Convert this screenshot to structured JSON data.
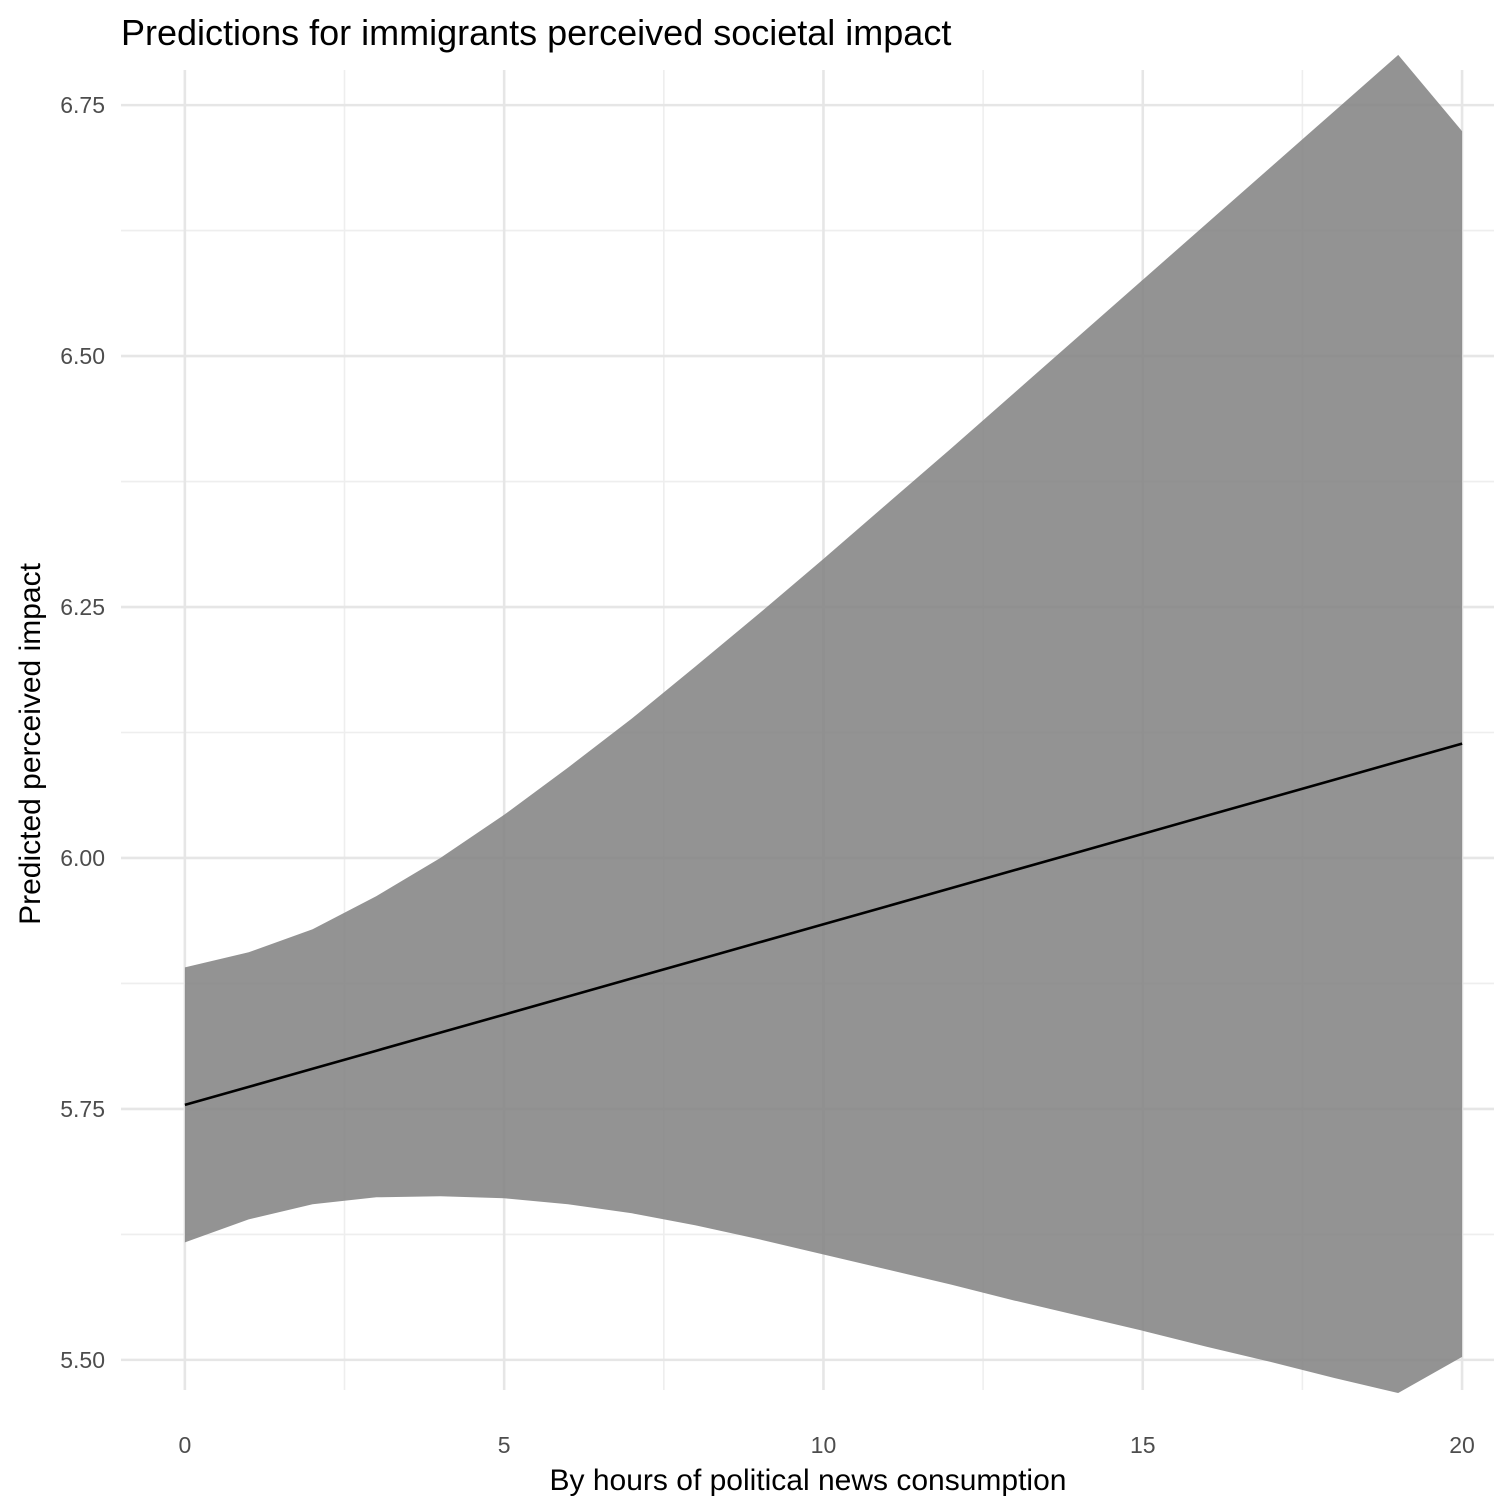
{
  "chart_data": {
    "type": "line",
    "title": "Predictions for immigrants perceived societal impact",
    "xlabel": "By hours of political news consumption",
    "ylabel": "Predicted perceived impact",
    "xlim": [
      -1,
      20.5
    ],
    "ylim": [
      5.47,
      6.785
    ],
    "x_ticks": [
      0,
      5,
      10,
      15,
      20
    ],
    "x_tick_labels": [
      "0",
      "5",
      "10",
      "15",
      "20"
    ],
    "y_ticks": [
      5.5,
      5.75,
      6.0,
      6.25,
      6.5,
      6.75
    ],
    "y_tick_labels": [
      "5.50",
      "5.75",
      "6.00",
      "6.25",
      "6.50",
      "6.75"
    ],
    "x_minor_ticks": [
      2.5,
      7.5,
      12.5,
      17.5
    ],
    "y_minor_ticks": [
      5.625,
      5.875,
      6.125,
      6.375,
      6.625
    ],
    "grid": true,
    "legend": "none",
    "band_color": "#808080",
    "band_opacity": 0.85,
    "line_color": "#000000",
    "series": [
      {
        "x": [
          0,
          1,
          2,
          3,
          4,
          5,
          6,
          7,
          8,
          9,
          10,
          11,
          12,
          13,
          14,
          15,
          16,
          17,
          18,
          19,
          20
        ],
        "y": [
          5.754,
          5.772,
          5.79,
          5.808,
          5.826,
          5.844,
          5.862,
          5.88,
          5.898,
          5.916,
          5.934,
          5.952,
          5.97,
          5.988,
          6.006,
          6.024,
          6.042,
          6.06,
          6.078,
          6.096,
          6.114
        ],
        "lower": [
          5.617,
          5.64,
          5.655,
          5.662,
          5.663,
          5.661,
          5.655,
          5.646,
          5.634,
          5.62,
          5.605,
          5.59,
          5.575,
          5.559,
          5.544,
          5.529,
          5.513,
          5.498,
          5.482,
          5.467,
          5.503
        ],
        "upper": [
          5.891,
          5.906,
          5.929,
          5.962,
          6.0,
          6.043,
          6.09,
          6.139,
          6.191,
          6.244,
          6.298,
          6.353,
          6.408,
          6.464,
          6.52,
          6.576,
          6.632,
          6.688,
          6.744,
          6.8,
          6.724
        ]
      }
    ]
  }
}
